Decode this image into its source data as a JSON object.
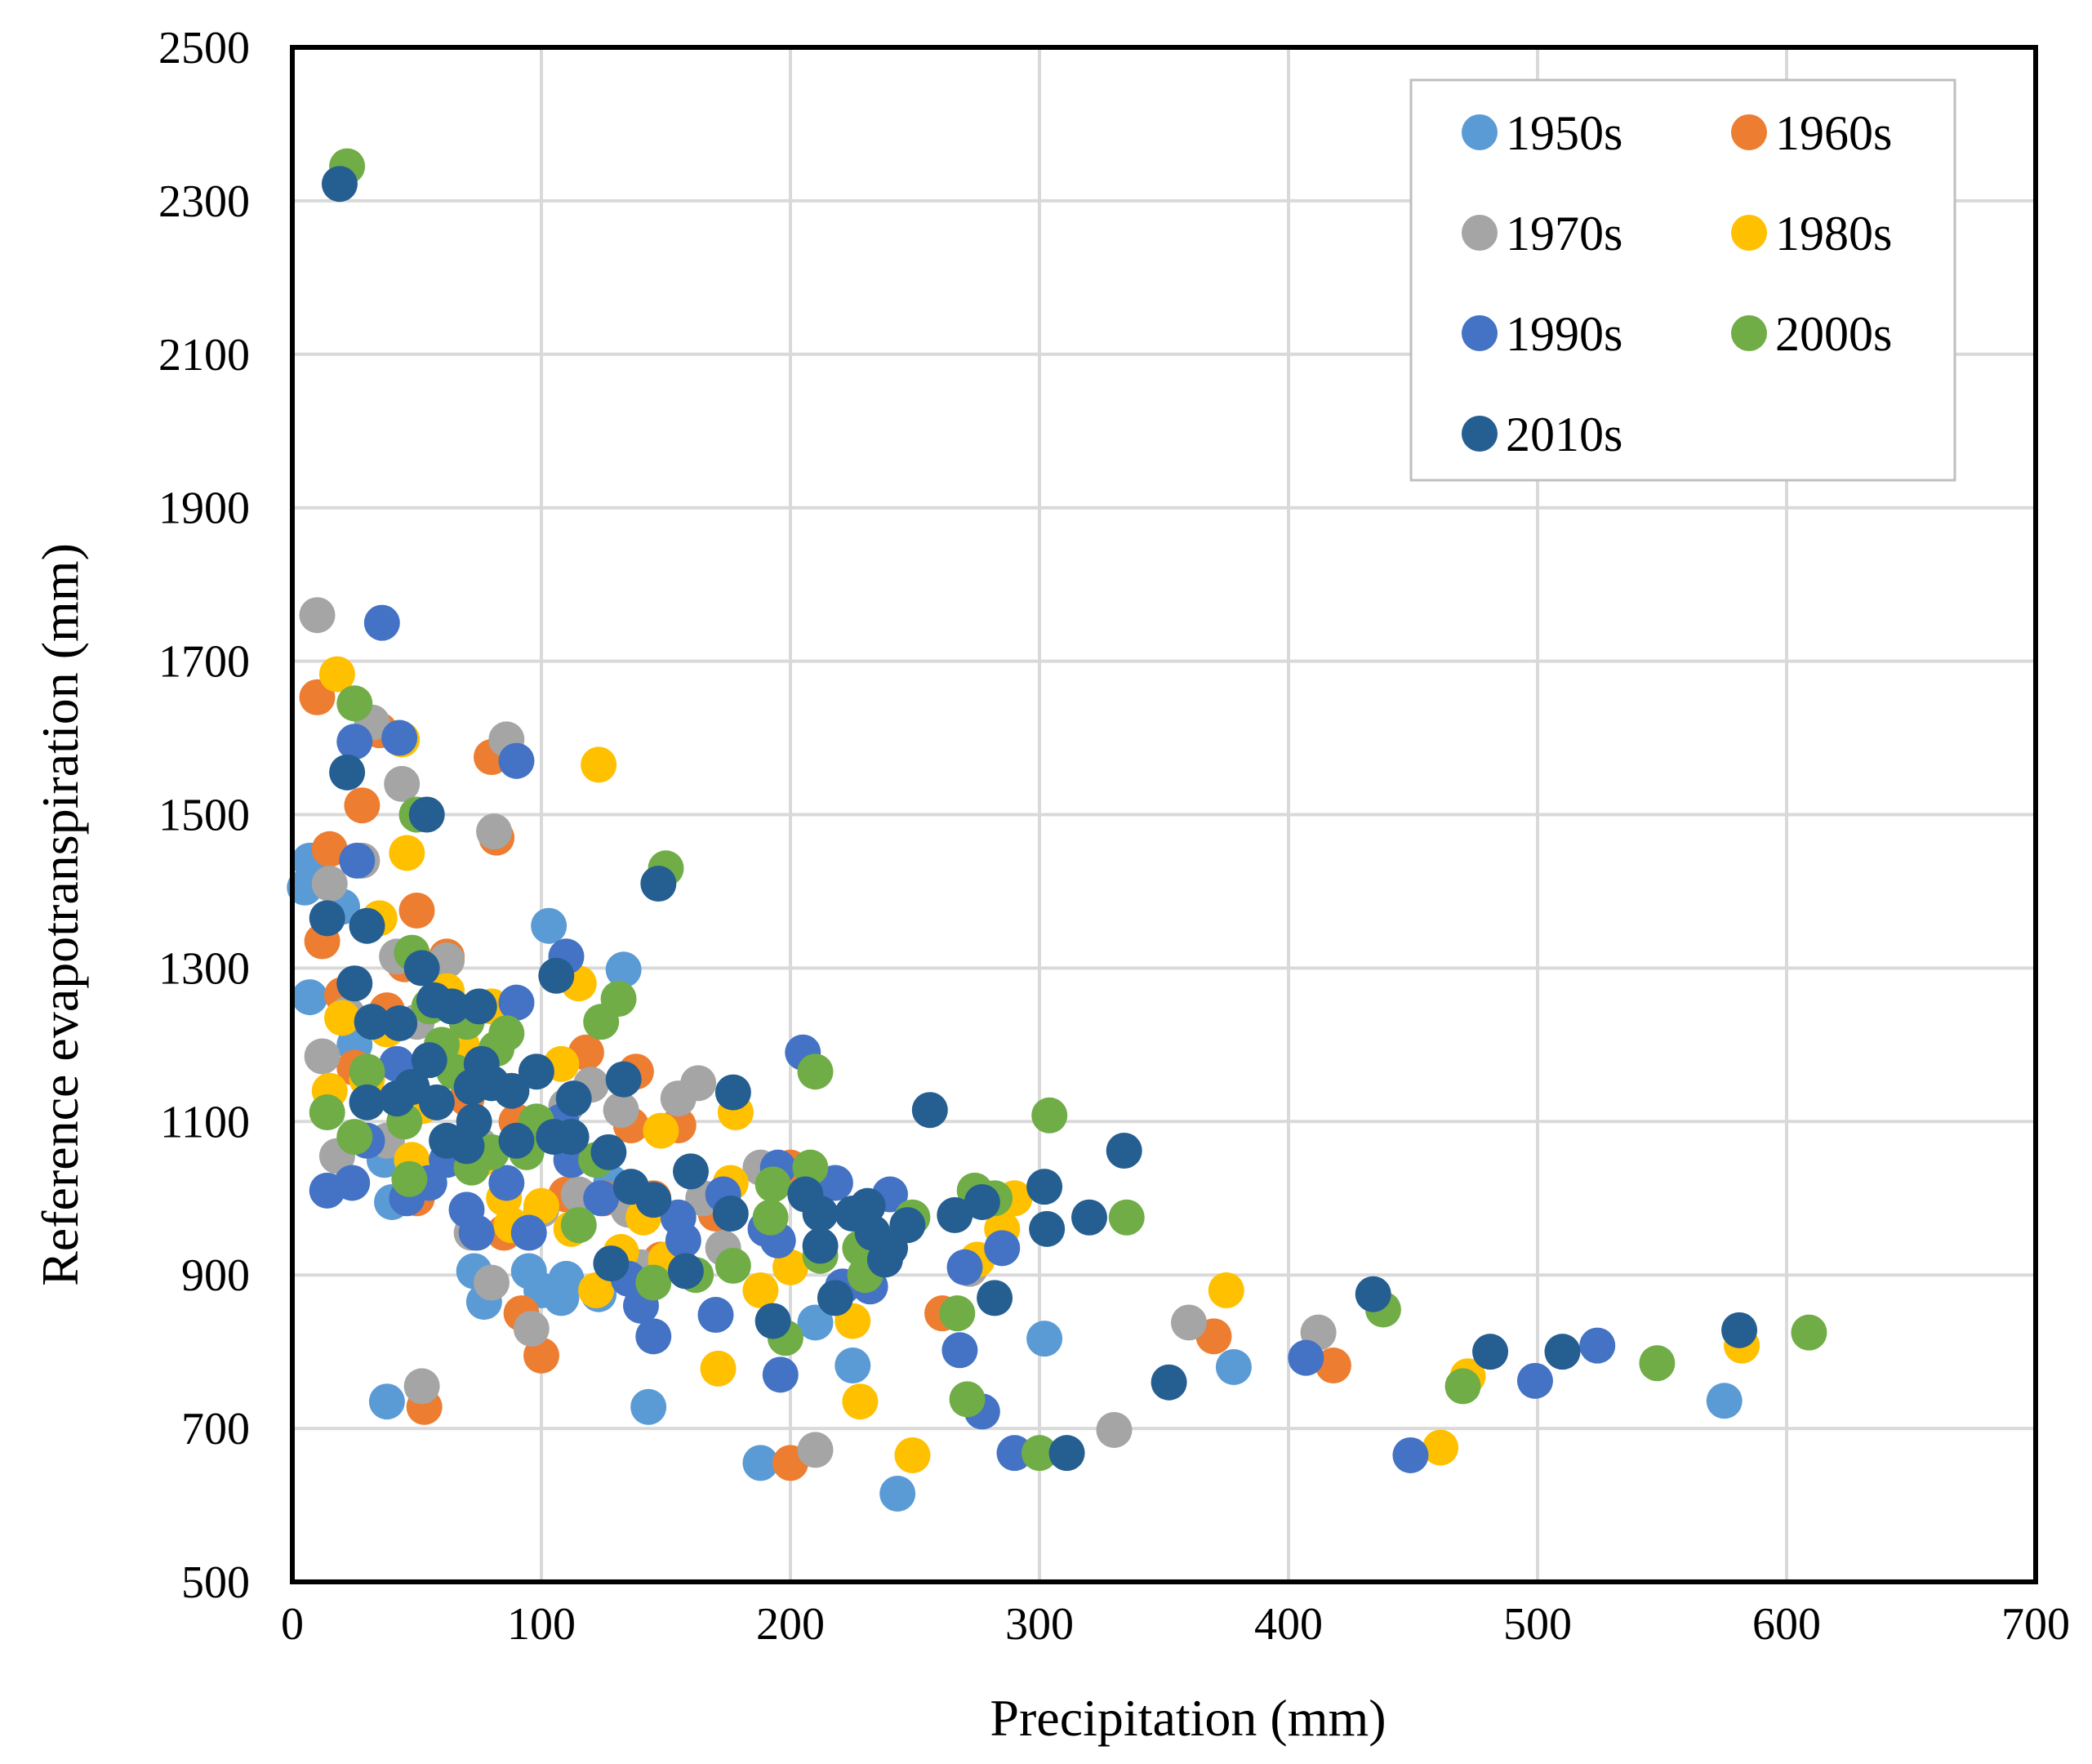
{
  "chart_data": {
    "type": "scatter",
    "title": "",
    "xlabel": "Precipitation (mm)",
    "ylabel": "Reference evapotranspiration (mm)",
    "xlim": [
      0,
      700
    ],
    "ylim": [
      500,
      2500
    ],
    "xticks": [
      0,
      100,
      200,
      300,
      400,
      500,
      600,
      700
    ],
    "yticks": [
      500,
      700,
      900,
      1100,
      1300,
      1500,
      1700,
      1900,
      2100,
      2300,
      2500
    ],
    "grid": true,
    "legend_position": "top-right",
    "series": [
      {
        "name": "1950s",
        "color": "#5b9bd5",
        "points": [
          [
            5,
            1405
          ],
          [
            7,
            1440
          ],
          [
            7,
            1262
          ],
          [
            20,
            1380
          ],
          [
            25,
            1200
          ],
          [
            37,
            1050
          ],
          [
            40,
            995
          ],
          [
            38,
            735
          ],
          [
            58,
            1300
          ],
          [
            73,
            905
          ],
          [
            77,
            865
          ],
          [
            95,
            905
          ],
          [
            100,
            880
          ],
          [
            108,
            870
          ],
          [
            110,
            895
          ],
          [
            123,
            875
          ],
          [
            128,
            1020
          ],
          [
            133,
            1298
          ],
          [
            103,
            1355
          ],
          [
            143,
            728
          ],
          [
            188,
            655
          ],
          [
            210,
            838
          ],
          [
            225,
            782
          ],
          [
            243,
            615
          ],
          [
            302,
            817
          ],
          [
            378,
            780
          ],
          [
            575,
            736
          ]
        ]
      },
      {
        "name": "1960s",
        "color": "#ed7d31",
        "points": [
          [
            10,
            1653
          ],
          [
            12,
            1335
          ],
          [
            15,
            1455
          ],
          [
            20,
            1265
          ],
          [
            25,
            1170
          ],
          [
            28,
            1512
          ],
          [
            35,
            1610
          ],
          [
            38,
            1245
          ],
          [
            45,
            1305
          ],
          [
            50,
            1375
          ],
          [
            50,
            1000
          ],
          [
            53,
            728
          ],
          [
            62,
            1315
          ],
          [
            70,
            1130
          ],
          [
            80,
            1575
          ],
          [
            82,
            1470
          ],
          [
            85,
            955
          ],
          [
            90,
            1100
          ],
          [
            92,
            850
          ],
          [
            100,
            795
          ],
          [
            110,
            1005
          ],
          [
            118,
            1190
          ],
          [
            125,
            1000
          ],
          [
            136,
            1095
          ],
          [
            138,
            1165
          ],
          [
            145,
            1000
          ],
          [
            148,
            920
          ],
          [
            155,
            1095
          ],
          [
            170,
            980
          ],
          [
            200,
            1040
          ],
          [
            200,
            655
          ],
          [
            261,
            850
          ],
          [
            370,
            820
          ],
          [
            418,
            782
          ]
        ]
      },
      {
        "name": "1970s",
        "color": "#a5a5a5",
        "points": [
          [
            10,
            1760
          ],
          [
            12,
            1185
          ],
          [
            15,
            1410
          ],
          [
            18,
            1055
          ],
          [
            22,
            1240
          ],
          [
            28,
            1440
          ],
          [
            32,
            1620
          ],
          [
            38,
            1075
          ],
          [
            42,
            1315
          ],
          [
            44,
            1540
          ],
          [
            50,
            1230
          ],
          [
            52,
            755
          ],
          [
            58,
            1185
          ],
          [
            62,
            1310
          ],
          [
            72,
            955
          ],
          [
            75,
            1070
          ],
          [
            80,
            890
          ],
          [
            81,
            1478
          ],
          [
            86,
            1598
          ],
          [
            96,
            830
          ],
          [
            100,
            985
          ],
          [
            110,
            1120
          ],
          [
            115,
            1005
          ],
          [
            120,
            1148
          ],
          [
            132,
            1115
          ],
          [
            135,
            985
          ],
          [
            140,
            910
          ],
          [
            155,
            1130
          ],
          [
            163,
            1150
          ],
          [
            165,
            1000
          ],
          [
            173,
            935
          ],
          [
            188,
            1040
          ],
          [
            210,
            672
          ],
          [
            272,
            908
          ],
          [
            330,
            698
          ],
          [
            360,
            838
          ],
          [
            412,
            825
          ]
        ]
      },
      {
        "name": "1980s",
        "color": "#ffc000",
        "points": [
          [
            15,
            1140
          ],
          [
            18,
            1683
          ],
          [
            20,
            1235
          ],
          [
            30,
            1155
          ],
          [
            35,
            1365
          ],
          [
            38,
            1220
          ],
          [
            44,
            1598
          ],
          [
            46,
            1450
          ],
          [
            48,
            1050
          ],
          [
            52,
            1120
          ],
          [
            62,
            1270
          ],
          [
            68,
            1200
          ],
          [
            75,
            1050
          ],
          [
            80,
            1250
          ],
          [
            85,
            1000
          ],
          [
            88,
            965
          ],
          [
            100,
            990
          ],
          [
            108,
            1175
          ],
          [
            112,
            960
          ],
          [
            115,
            1280
          ],
          [
            122,
            880
          ],
          [
            123,
            1565
          ],
          [
            132,
            930
          ],
          [
            141,
            975
          ],
          [
            148,
            1088
          ],
          [
            150,
            920
          ],
          [
            171,
            778
          ],
          [
            176,
            1020
          ],
          [
            178,
            1112
          ],
          [
            188,
            880
          ],
          [
            200,
            910
          ],
          [
            210,
            1000
          ],
          [
            225,
            840
          ],
          [
            228,
            735
          ],
          [
            249,
            665
          ],
          [
            275,
            920
          ],
          [
            285,
            960
          ],
          [
            290,
            1000
          ],
          [
            375,
            880
          ],
          [
            461,
            675
          ],
          [
            472,
            768
          ],
          [
            582,
            808
          ]
        ]
      },
      {
        "name": "1990s",
        "color": "#4472c4",
        "points": [
          [
            14,
            1010
          ],
          [
            24,
            1020
          ],
          [
            25,
            1595
          ],
          [
            26,
            1440
          ],
          [
            30,
            1075
          ],
          [
            36,
            1750
          ],
          [
            42,
            1175
          ],
          [
            43,
            1600
          ],
          [
            46,
            1000
          ],
          [
            55,
            1020
          ],
          [
            62,
            1050
          ],
          [
            70,
            985
          ],
          [
            74,
            955
          ],
          [
            86,
            1020
          ],
          [
            90,
            1570
          ],
          [
            90,
            1255
          ],
          [
            95,
            955
          ],
          [
            108,
            1100
          ],
          [
            110,
            1315
          ],
          [
            112,
            1050
          ],
          [
            124,
            1000
          ],
          [
            135,
            895
          ],
          [
            140,
            860
          ],
          [
            145,
            820
          ],
          [
            155,
            975
          ],
          [
            157,
            945
          ],
          [
            170,
            848
          ],
          [
            173,
            1005
          ],
          [
            190,
            960
          ],
          [
            195,
            1040
          ],
          [
            195,
            945
          ],
          [
            196,
            770
          ],
          [
            205,
            1190
          ],
          [
            218,
            1020
          ],
          [
            221,
            885
          ],
          [
            232,
            885
          ],
          [
            240,
            1005
          ],
          [
            268,
            802
          ],
          [
            270,
            910
          ],
          [
            277,
            722
          ],
          [
            285,
            935
          ],
          [
            290,
            668
          ],
          [
            407,
            792
          ],
          [
            449,
            665
          ],
          [
            499,
            762
          ],
          [
            524,
            808
          ]
        ]
      },
      {
        "name": "2000s",
        "color": "#70ad47",
        "points": [
          [
            14,
            1112
          ],
          [
            22,
            2345
          ],
          [
            25,
            1645
          ],
          [
            25,
            1080
          ],
          [
            30,
            1165
          ],
          [
            45,
            1100
          ],
          [
            47,
            1025
          ],
          [
            48,
            1320
          ],
          [
            50,
            1500
          ],
          [
            55,
            1250
          ],
          [
            60,
            1200
          ],
          [
            65,
            1165
          ],
          [
            70,
            1230
          ],
          [
            72,
            1040
          ],
          [
            80,
            1060
          ],
          [
            82,
            1195
          ],
          [
            86,
            1215
          ],
          [
            94,
            1060
          ],
          [
            98,
            1100
          ],
          [
            115,
            965
          ],
          [
            122,
            1050
          ],
          [
            124,
            1230
          ],
          [
            131,
            1260
          ],
          [
            145,
            890
          ],
          [
            150,
            1430
          ],
          [
            162,
            900
          ],
          [
            177,
            912
          ],
          [
            192,
            975
          ],
          [
            193,
            1018
          ],
          [
            198,
            818
          ],
          [
            208,
            1040
          ],
          [
            210,
            1165
          ],
          [
            212,
            925
          ],
          [
            228,
            935
          ],
          [
            230,
            900
          ],
          [
            249,
            975
          ],
          [
            267,
            850
          ],
          [
            271,
            738
          ],
          [
            274,
            1010
          ],
          [
            282,
            1000
          ],
          [
            300,
            668
          ],
          [
            304,
            1108
          ],
          [
            335,
            975
          ],
          [
            438,
            855
          ],
          [
            470,
            755
          ],
          [
            548,
            785
          ],
          [
            609,
            825
          ]
        ]
      },
      {
        "name": "2010s",
        "color": "#255e91",
        "points": [
          [
            19,
            2322
          ],
          [
            14,
            1365
          ],
          [
            22,
            1555
          ],
          [
            25,
            1280
          ],
          [
            30,
            1355
          ],
          [
            30,
            1125
          ],
          [
            32,
            1230
          ],
          [
            42,
            1130
          ],
          [
            43,
            1228
          ],
          [
            48,
            1145
          ],
          [
            52,
            1300
          ],
          [
            54,
            1500
          ],
          [
            55,
            1180
          ],
          [
            57,
            1258
          ],
          [
            58,
            1125
          ],
          [
            62,
            1075
          ],
          [
            64,
            1250
          ],
          [
            70,
            1068
          ],
          [
            72,
            1145
          ],
          [
            73,
            1100
          ],
          [
            75,
            1250
          ],
          [
            76,
            1175
          ],
          [
            80,
            1150
          ],
          [
            88,
            1140
          ],
          [
            90,
            1075
          ],
          [
            98,
            1165
          ],
          [
            105,
            1080
          ],
          [
            106,
            1290
          ],
          [
            112,
            1080
          ],
          [
            113,
            1130
          ],
          [
            127,
            1060
          ],
          [
            128,
            915
          ],
          [
            133,
            1155
          ],
          [
            136,
            1015
          ],
          [
            145,
            998
          ],
          [
            147,
            1410
          ],
          [
            158,
            905
          ],
          [
            160,
            1035
          ],
          [
            176,
            980
          ],
          [
            177,
            1138
          ],
          [
            193,
            840
          ],
          [
            206,
            1005
          ],
          [
            212,
            980
          ],
          [
            212,
            938
          ],
          [
            218,
            870
          ],
          [
            225,
            980
          ],
          [
            231,
            990
          ],
          [
            233,
            955
          ],
          [
            238,
            920
          ],
          [
            240,
            935
          ],
          [
            247,
            965
          ],
          [
            256,
            1115
          ],
          [
            266,
            978
          ],
          [
            277,
            995
          ],
          [
            282,
            870
          ],
          [
            302,
            1015
          ],
          [
            303,
            960
          ],
          [
            311,
            668
          ],
          [
            320,
            975
          ],
          [
            334,
            1062
          ],
          [
            352,
            760
          ],
          [
            434,
            875
          ],
          [
            481,
            800
          ],
          [
            510,
            800
          ],
          [
            581,
            828
          ]
        ]
      }
    ]
  }
}
